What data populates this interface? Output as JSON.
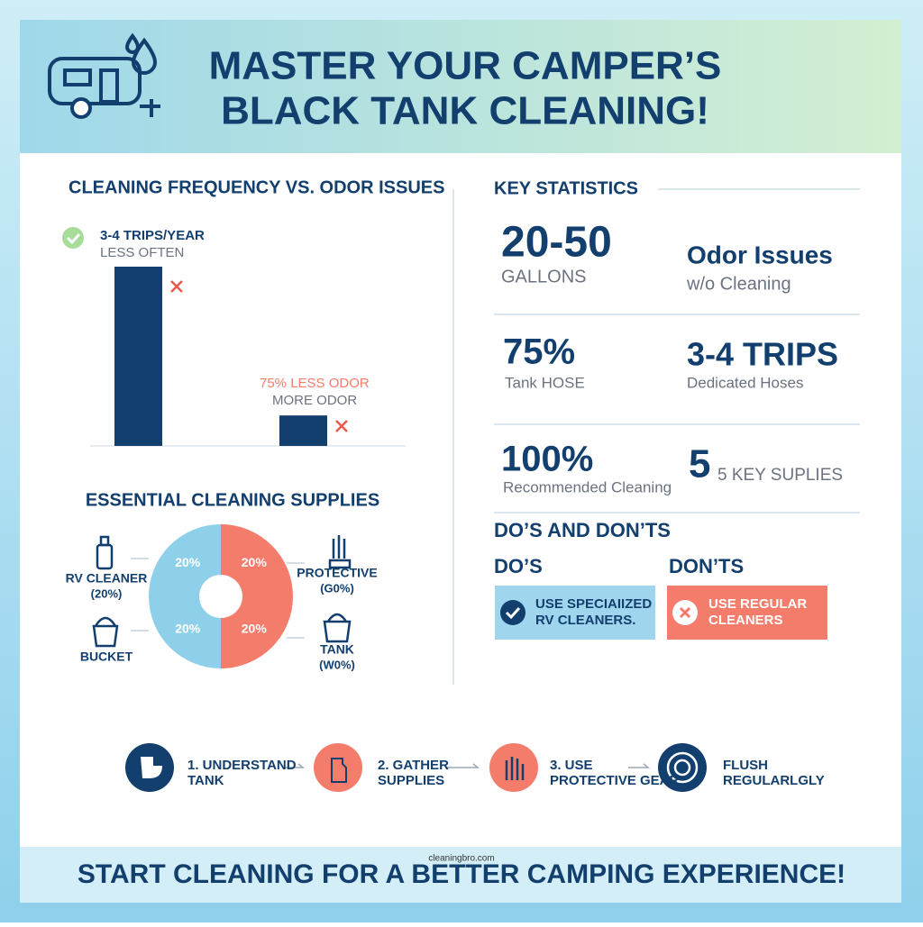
{
  "header": {
    "title_line1": "MASTER YOUR CAMPER’S",
    "title_line2": "BLACK TANK CLEANING!"
  },
  "chart_data": [
    {
      "type": "bar",
      "title": "CLEANING FREQUENCY VS. ODOR ISSUES",
      "categories": [
        null,
        null
      ],
      "values": [
        100,
        17
      ],
      "color": "#123f6e",
      "annotations": [
        "3-4 TRIPS/YEAR",
        "LESS OFTEN",
        "75% LESS ODOR",
        "MORE ODOR"
      ]
    },
    {
      "type": "pie",
      "title": "ESSENTIAL CLEANING SUPPLIES",
      "values": [
        20,
        20,
        20,
        20
      ],
      "value_labels": [
        "20%",
        "20%",
        "20%",
        "20%"
      ],
      "colors": [
        "#8ecfe9",
        "#f47c6a",
        "#f47c6a",
        "#8ecfe9"
      ],
      "annotations": [
        "RV CLEANER",
        "(20%)",
        "BUCKET",
        "PROTECTIVE",
        "(G0%)",
        "TANK",
        "(W0%)"
      ]
    }
  ],
  "statistics": {
    "title": "KEY STATISTICS",
    "items": [
      {
        "value": "20-50",
        "label": "GALLONS"
      },
      {
        "value": "Odor Issues",
        "label": "w/o Cleaning"
      },
      {
        "value": "75%",
        "label": "Tank HOSE"
      },
      {
        "value": "3-4 TRIPS",
        "label": "Dedicated Hoses"
      },
      {
        "value": "100%",
        "label": "Recommended Cleaning"
      },
      {
        "value": "5",
        "label": "5 KEY SUPLIES"
      }
    ]
  },
  "dos_donts": {
    "title": "DO’S AND DON’TS",
    "dos_heading": "DO’S",
    "donts_heading": "DON’TS",
    "do_lines": [
      "USE SPECIAIIZED",
      "RV CLEANERS."
    ],
    "dont_lines": [
      "USE REGULAR",
      "CLEANERS"
    ]
  },
  "steps": [
    {
      "lines": [
        "1. UNDERSTAND",
        "TANK"
      ]
    },
    {
      "lines": [
        "2. GATHER",
        "SUPPLIES"
      ]
    },
    {
      "lines": [
        "3. USE",
        "PROTECTIVE GEAR"
      ]
    },
    {
      "lines": [
        "FLUSH",
        "REGULARLGLY"
      ]
    }
  ],
  "footer": {
    "watermark": "cleaningbro.com",
    "text": "START CLEANING FOR A BETTER CAMPING EXPERIENCE!"
  }
}
